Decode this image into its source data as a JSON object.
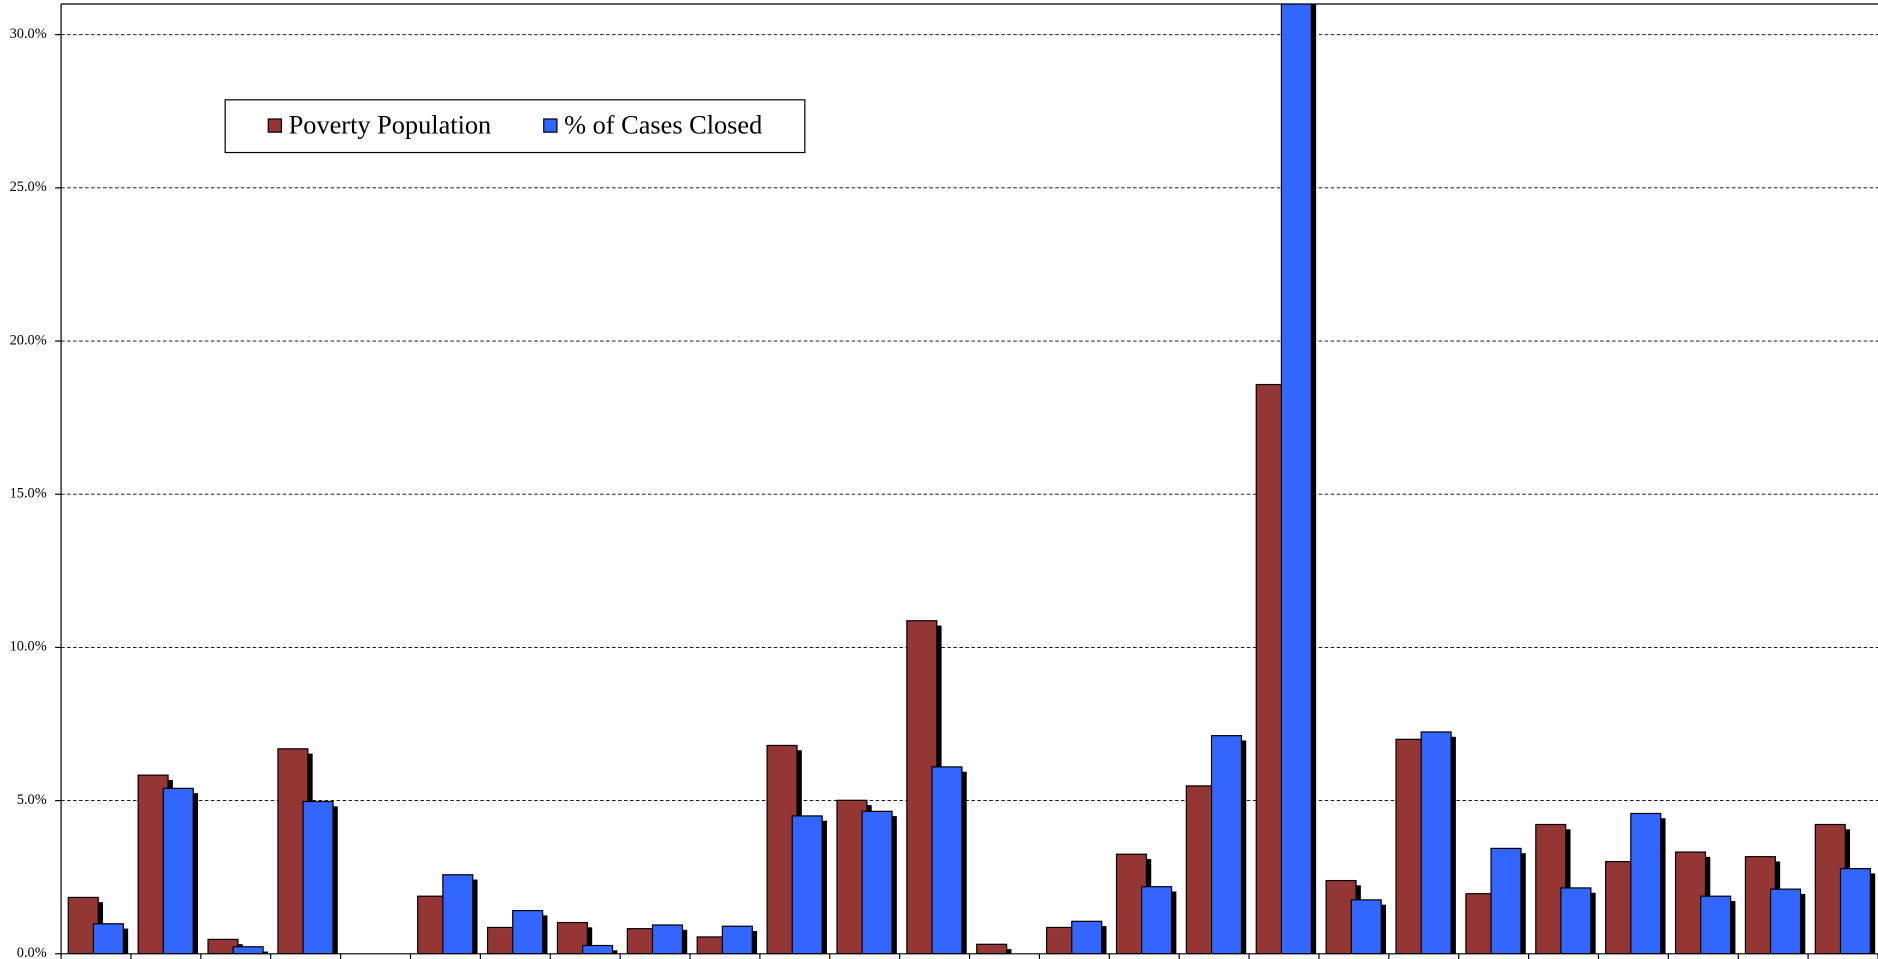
{
  "chart_data": {
    "type": "bar",
    "categories": [
      null,
      null,
      null,
      null,
      null,
      null,
      null,
      null,
      null,
      null,
      null,
      null,
      null,
      null,
      null,
      null,
      null,
      null,
      null,
      null,
      null,
      null,
      null,
      null,
      null,
      null
    ],
    "series": [
      {
        "name": "Poverty Population",
        "color": "#943634",
        "values": [
          1.84,
          5.83,
          0.47,
          6.69,
          0,
          1.88,
          0.86,
          1.02,
          0.82,
          0.55,
          6.8,
          5.01,
          10.87,
          0.31,
          0.86,
          3.25,
          5.48,
          18.58,
          2.39,
          7.0,
          1.96,
          4.22,
          3.01,
          3.32,
          3.17,
          4.22
        ]
      },
      {
        "name": "% of Cases Closed",
        "color": "#3366ff",
        "values": [
          0.98,
          5.4,
          0.23,
          4.97,
          0,
          2.58,
          1.41,
          0.27,
          0.94,
          0.9,
          4.5,
          4.65,
          6.1,
          0,
          1.06,
          2.19,
          7.12,
          33,
          1.76,
          7.24,
          3.44,
          2.15,
          4.58,
          1.88,
          2.11,
          2.78
        ]
      }
    ],
    "ylim": [
      0,
      31.0
    ],
    "yticks": [
      {
        "value": 0,
        "label": "0.0%"
      },
      {
        "value": 5,
        "label": "5.0%"
      },
      {
        "value": 10,
        "label": "10.0%"
      },
      {
        "value": 15,
        "label": "15.0%"
      },
      {
        "value": 20,
        "label": "20.0%"
      },
      {
        "value": 25,
        "label": "25.0%"
      },
      {
        "value": 30,
        "label": "30.0%"
      }
    ],
    "grid": true
  }
}
